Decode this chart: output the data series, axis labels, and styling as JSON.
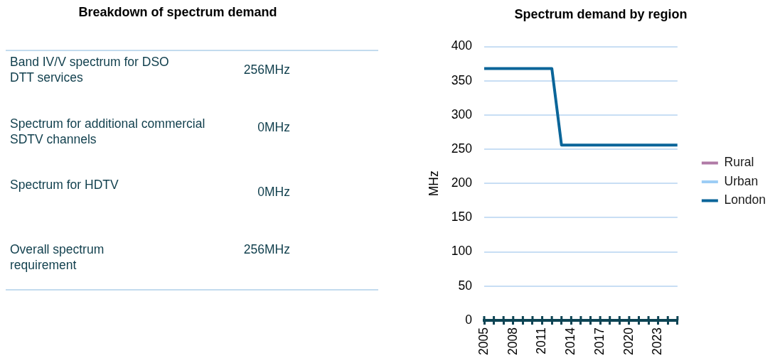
{
  "chart_data": [
    {
      "type": "other",
      "title": "Breakdown of spectrum demand",
      "annotations": [
        "Band IV/V spectrum for DSO DTT services",
        "256MHz",
        "Spectrum for additional commercial SDTV channels",
        "0MHz",
        "Spectrum for HDTV",
        "0MHz",
        "Overall spectrum requirement",
        "256MHz"
      ]
    },
    {
      "type": "line",
      "title": "Spectrum demand by region",
      "ylabel": "MHz",
      "x": [
        2005,
        2006,
        2007,
        2008,
        2009,
        2010,
        2011,
        2012,
        2013,
        2014,
        2015,
        2016,
        2017,
        2018,
        2019,
        2020,
        2021,
        2022,
        2023,
        2024,
        2025
      ],
      "series": [
        {
          "name": "Rural",
          "color": "#b07aa6",
          "values": [
            null,
            null,
            null,
            null,
            null,
            null,
            null,
            null,
            null,
            null,
            null,
            null,
            null,
            null,
            null,
            null,
            null,
            null,
            null,
            null,
            null
          ]
        },
        {
          "name": "Urban",
          "color": "#9dcdf5",
          "values": [
            null,
            null,
            null,
            null,
            null,
            null,
            null,
            null,
            null,
            null,
            null,
            null,
            null,
            null,
            null,
            null,
            null,
            null,
            null,
            null,
            null
          ]
        },
        {
          "name": "London",
          "color": "#0a6599",
          "values": [
            368,
            368,
            368,
            368,
            368,
            368,
            368,
            368,
            256,
            256,
            256,
            256,
            256,
            256,
            256,
            256,
            256,
            256,
            256,
            256,
            256
          ]
        }
      ],
      "xlim": [
        2005,
        2025
      ],
      "xticks": [
        2005,
        {
          "value": 2006,
          "label": null
        },
        {
          "value": 2007,
          "label": null
        },
        2008,
        {
          "value": 2009,
          "label": null
        },
        {
          "value": 2010,
          "label": null
        },
        2011,
        {
          "value": 2012,
          "label": null
        },
        {
          "value": 2013,
          "label": null
        },
        2014,
        {
          "value": 2015,
          "label": null
        },
        {
          "value": 2016,
          "label": null
        },
        2017,
        {
          "value": 2018,
          "label": null
        },
        {
          "value": 2019,
          "label": null
        },
        2020,
        {
          "value": 2021,
          "label": null
        },
        {
          "value": 2022,
          "label": null
        },
        2023,
        {
          "value": 2024,
          "label": null
        },
        {
          "value": 2025,
          "label": null
        }
      ],
      "ylim": [
        0,
        400
      ],
      "yticks": [
        0,
        50,
        100,
        150,
        200,
        250,
        300,
        350,
        400
      ],
      "grid": "y",
      "legend": "right"
    }
  ]
}
